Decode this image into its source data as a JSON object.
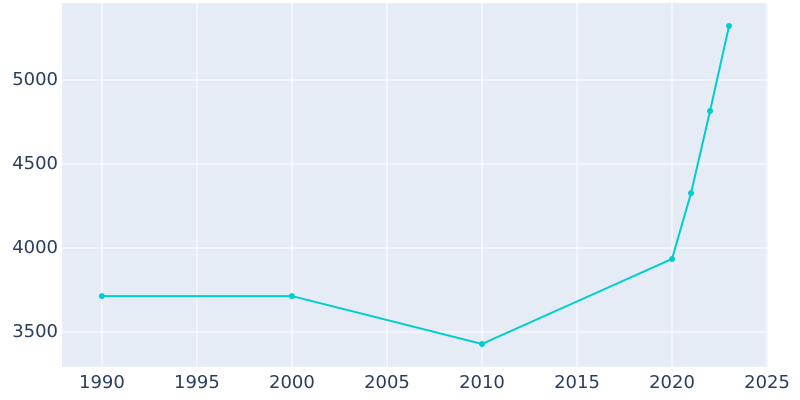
{
  "chart_data": {
    "type": "line",
    "x": [
      1990,
      2000,
      2010,
      2020,
      2021,
      2022,
      2023
    ],
    "series": [
      {
        "color": "#00cdcd",
        "values": [
          3714,
          3714,
          3429,
          3935,
          4327,
          4815,
          5321
        ]
      }
    ],
    "xlim": [
      1987.9,
      2025.05
    ],
    "xticks": [
      1990,
      1995,
      2000,
      2005,
      2010,
      2015,
      2020,
      2025
    ],
    "ylim": [
      3292,
      5458
    ],
    "yticks": [
      3500,
      4000,
      4500,
      5000
    ],
    "grid": true
  }
}
